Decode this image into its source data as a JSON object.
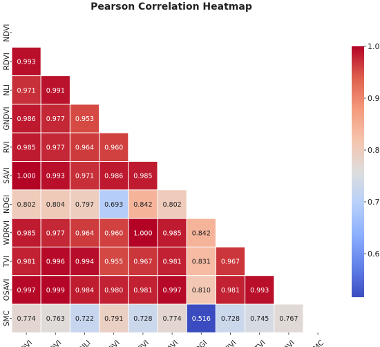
{
  "chart_data": {
    "type": "heatmap",
    "title": "Pearson Correlation Heatmap",
    "labels": [
      "NDVI",
      "RDVI",
      "NLI",
      "GNDVI",
      "RVI",
      "SAVI",
      "NDGI",
      "WDRVI",
      "TVI",
      "OSAVI",
      "SMC"
    ],
    "mask": "upper-triangle-including-diagonal",
    "matrix": [
      [],
      [
        0.993
      ],
      [
        0.971,
        0.991
      ],
      [
        0.986,
        0.977,
        0.953
      ],
      [
        0.985,
        0.977,
        0.964,
        0.96
      ],
      [
        1.0,
        0.993,
        0.971,
        0.986,
        0.985
      ],
      [
        0.802,
        0.804,
        0.797,
        0.693,
        0.842,
        0.802
      ],
      [
        0.985,
        0.977,
        0.964,
        0.96,
        1.0,
        0.985,
        0.842
      ],
      [
        0.981,
        0.996,
        0.994,
        0.955,
        0.967,
        0.981,
        0.831,
        0.967
      ],
      [
        0.997,
        0.999,
        0.984,
        0.98,
        0.981,
        0.997,
        0.81,
        0.981,
        0.993
      ],
      [
        0.774,
        0.763,
        0.722,
        0.791,
        0.728,
        0.774,
        0.516,
        0.728,
        0.745,
        0.767
      ]
    ],
    "colorbar": {
      "colormap": "coolwarm",
      "vmin": 0.516,
      "vmax": 1.0,
      "ticks": [
        1.0,
        0.9,
        0.8,
        0.7,
        0.6
      ],
      "tick_labels": [
        "1.0",
        "0.9",
        "0.8",
        "0.7",
        "0.6"
      ]
    },
    "value_format": "3 decimals"
  }
}
